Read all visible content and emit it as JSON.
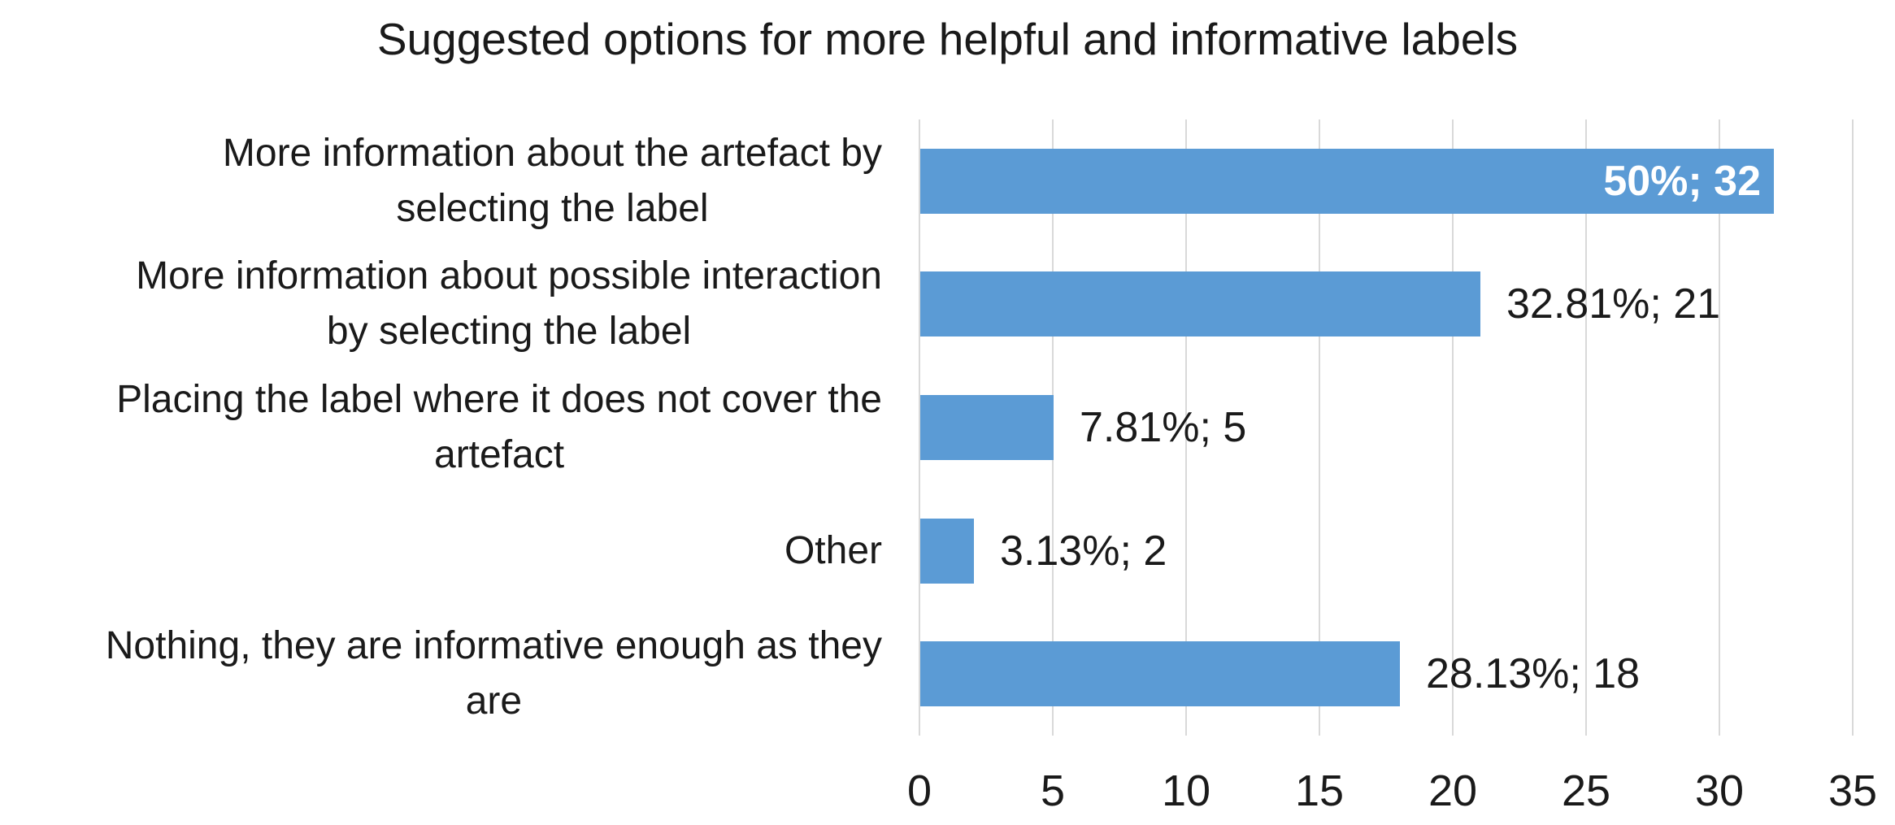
{
  "title": "Suggested options for more helpful and informative labels",
  "colors": {
    "bar": "#5b9bd5",
    "gridline": "#d9d9d9",
    "text": "#1a1a1a",
    "data_label_inside_text": "#ffffff",
    "background": "#ffffff"
  },
  "chart_data": {
    "type": "bar",
    "orientation": "horizontal",
    "title": "Suggested options for more helpful and informative labels",
    "categories": [
      "More information about the artefact by\nselecting the label",
      "More information about possible interaction\nby selecting the label",
      "Placing the label where it does not cover the\nartefact",
      "Other",
      "Nothing, they are informative enough as they\nare"
    ],
    "values": [
      32,
      21,
      5,
      2,
      18
    ],
    "percentages": [
      50,
      32.81,
      7.81,
      3.13,
      28.13
    ],
    "data_labels": [
      "50%; 32",
      "32.81%; 21",
      "7.81%; 5",
      "3.13%; 2",
      "28.13%; 18"
    ],
    "data_label_inside": [
      true,
      false,
      false,
      false,
      false
    ],
    "xlabel": "",
    "ylabel": "",
    "xlim": [
      0,
      35
    ],
    "x_ticks": [
      0,
      5,
      10,
      15,
      20,
      25,
      30,
      35
    ],
    "grid": true,
    "legend": false
  }
}
